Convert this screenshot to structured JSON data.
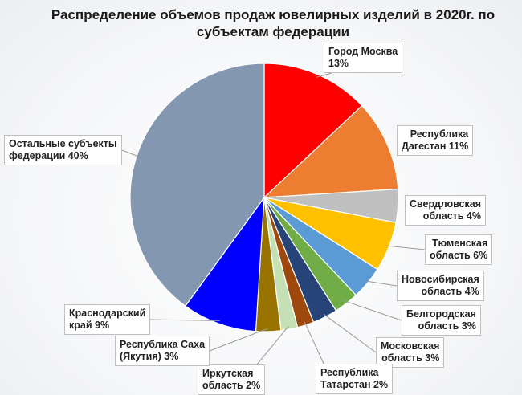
{
  "chart_data": {
    "type": "pie",
    "title_line1": "Распределение объемов продаж ювелирных изделий в 2020г.  по",
    "title_line2": "субъектам федерации",
    "slices": [
      {
        "line1": "Город Москва",
        "line2": "13%",
        "value": 13,
        "color": "#ff0000"
      },
      {
        "line1": "Республика",
        "line2": "Дагестан 11%",
        "value": 11,
        "color": "#ed7d31"
      },
      {
        "line1": "Свердловская",
        "line2": "область 4%",
        "value": 4,
        "color": "#c0c0c0"
      },
      {
        "line1": "Тюменская",
        "line2": "область 6%",
        "value": 6,
        "color": "#ffc000"
      },
      {
        "line1": "Новосибирская",
        "line2": "область 4%",
        "value": 4,
        "color": "#5b9bd5"
      },
      {
        "line1": "Белгородская",
        "line2": "область 3%",
        "value": 3,
        "color": "#70ad47"
      },
      {
        "line1": "Московская",
        "line2": "область 3%",
        "value": 3,
        "color": "#264478"
      },
      {
        "line1": "Республика",
        "line2": "Татарстан  2%",
        "value": 2,
        "color": "#9e480e"
      },
      {
        "line1": "Иркутская",
        "line2": "область 2%",
        "value": 2,
        "color": "#c5e0b4"
      },
      {
        "line1": "Республика Саха",
        "line2": "(Якутия) 3%",
        "value": 3,
        "color": "#997300"
      },
      {
        "line1": "Краснодарский",
        "line2": "край 9%",
        "value": 9,
        "color": "#0000ff"
      },
      {
        "line1": "Остальные субъекты",
        "line2": "федерации 40%",
        "value": 40,
        "color": "#8497b0"
      }
    ]
  }
}
